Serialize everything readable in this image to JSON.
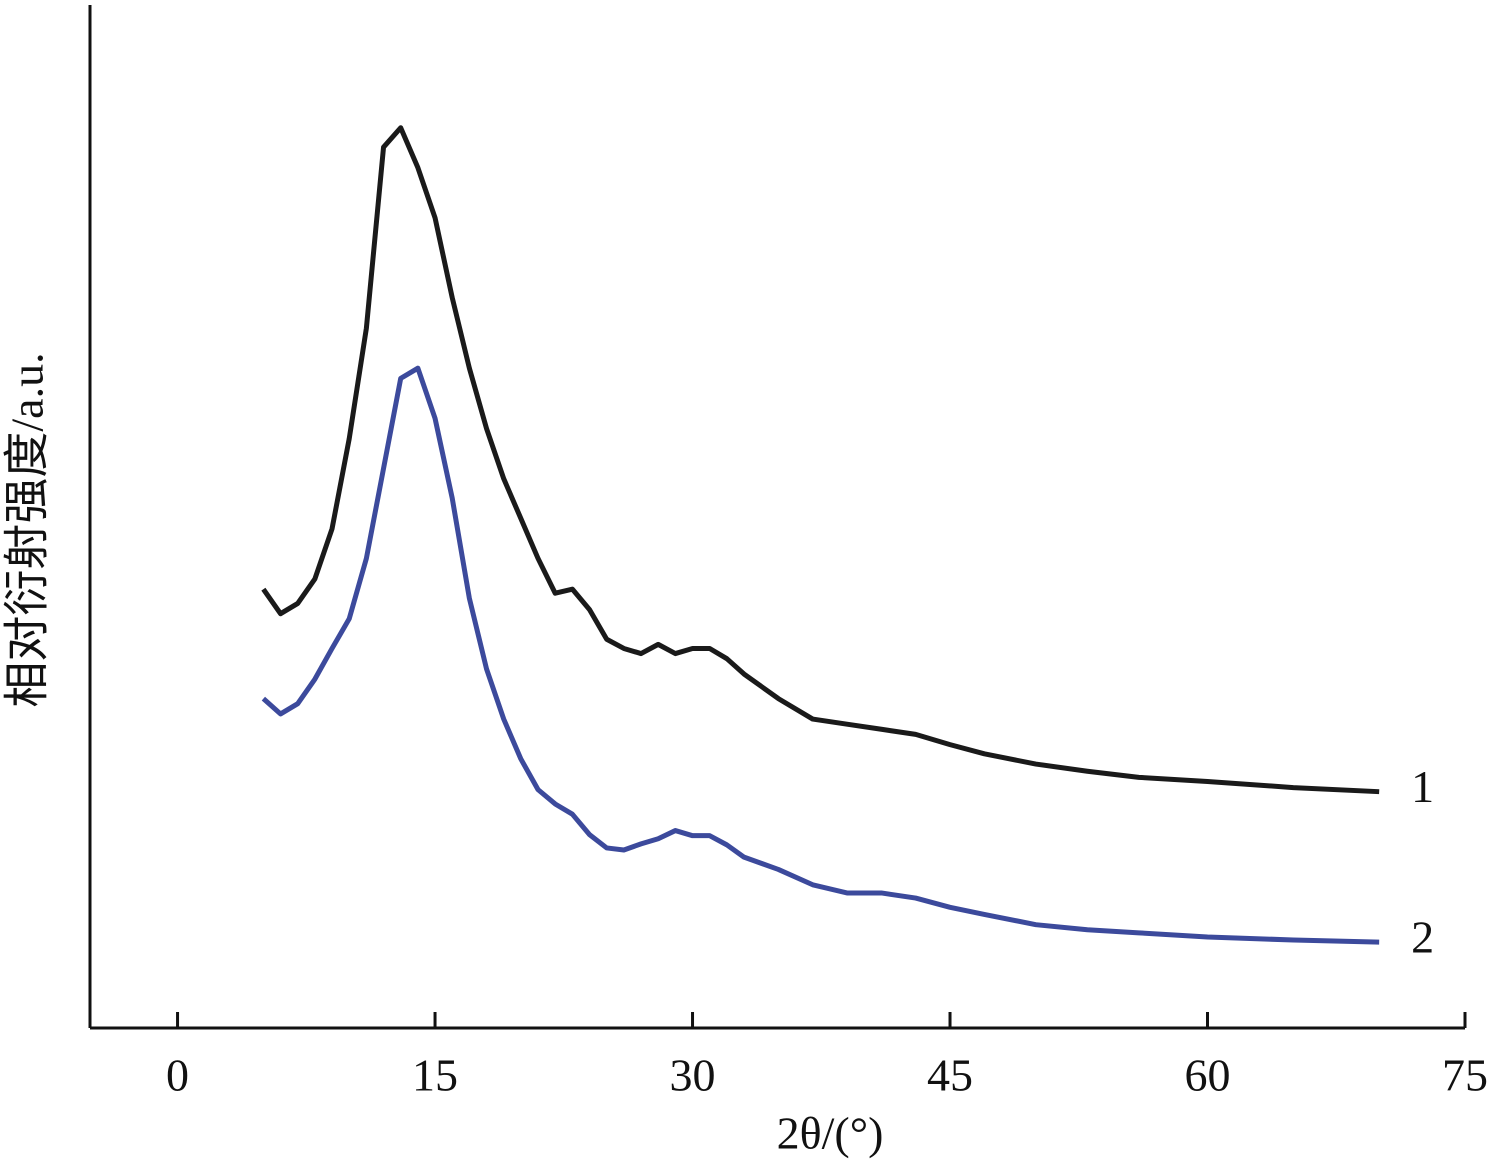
{
  "chart_data": {
    "type": "line",
    "xlabel": "2θ/(°)",
    "ylabel": "相对衍射强度/a.u.",
    "x": [
      5,
      6,
      7,
      8,
      9,
      10,
      11,
      12,
      13,
      14,
      15,
      16,
      17,
      18,
      19,
      20,
      21,
      22,
      23,
      24,
      25,
      26,
      27,
      28,
      29,
      30,
      31,
      32,
      33,
      35,
      37,
      39,
      41,
      43,
      45,
      47,
      50,
      53,
      56,
      60,
      65,
      70
    ],
    "series": [
      {
        "name": "1",
        "color": "#1a1a1a",
        "values": [
          42.9,
          40.5,
          41.5,
          43.9,
          48.8,
          57.6,
          68.4,
          86.1,
          88.0,
          84.1,
          79.2,
          71.4,
          64.5,
          58.6,
          53.7,
          49.8,
          45.9,
          42.5,
          42.9,
          40.9,
          38.0,
          37.1,
          36.6,
          37.5,
          36.6,
          37.1,
          37.1,
          36.1,
          34.6,
          32.2,
          30.2,
          29.7,
          29.2,
          28.7,
          27.7,
          26.8,
          25.8,
          25.1,
          24.5,
          24.1,
          23.5,
          23.1
        ]
      },
      {
        "name": "2",
        "color": "#3c4a9c",
        "values": [
          32.2,
          30.7,
          31.7,
          34.1,
          37.1,
          40.0,
          45.9,
          54.7,
          63.5,
          64.5,
          59.6,
          51.8,
          42.0,
          35.1,
          30.2,
          26.3,
          23.3,
          21.9,
          20.9,
          18.9,
          17.6,
          17.4,
          18.0,
          18.5,
          19.3,
          18.8,
          18.8,
          17.9,
          16.7,
          15.5,
          14.0,
          13.2,
          13.2,
          12.7,
          11.8,
          11.1,
          10.1,
          9.6,
          9.3,
          8.9,
          8.6,
          8.4
        ]
      }
    ],
    "xlim": [
      -5.1,
      75
    ],
    "xticks": [
      0,
      15,
      30,
      45,
      60,
      75
    ],
    "ylim": [
      0,
      100
    ]
  }
}
